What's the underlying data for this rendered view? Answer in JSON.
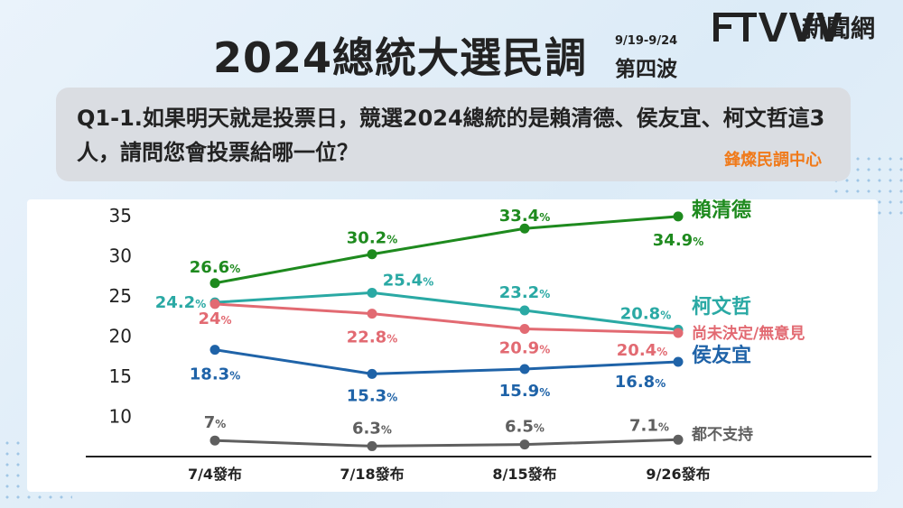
{
  "header": {
    "title": "2024總統大選民調",
    "date_range": "9/19-9/24",
    "wave": "第四波",
    "logo_text": "新聞網"
  },
  "question": {
    "text": "Q1-1.如果明天就是投票日，競選2024總統的是賴清德、侯友宜、柯文哲這3人，請問您會投票給哪一位？",
    "source": "鋒燦民調中心"
  },
  "colors": {
    "lai": "#1e8a1e",
    "ko": "#2aa9a4",
    "undecided": "#e26a72",
    "hou": "#1f63a8",
    "none": "#5f5f5f"
  },
  "chart_data": {
    "type": "line",
    "categories": [
      "7/4發布",
      "7/18發布",
      "8/15發布",
      "9/26發布"
    ],
    "ylim": [
      5,
      35
    ],
    "yticks": [
      10,
      15,
      20,
      25,
      30,
      35
    ],
    "grid": false,
    "series": [
      {
        "name": "賴清德",
        "key": "lai",
        "values": [
          26.6,
          30.2,
          33.4,
          34.9
        ],
        "labels": [
          "26.6",
          "30.2",
          "33.4",
          "34.9"
        ]
      },
      {
        "name": "柯文哲",
        "key": "ko",
        "values": [
          24.2,
          25.4,
          23.2,
          20.8
        ],
        "labels": [
          "24.2",
          "25.4",
          "23.2",
          "20.8"
        ]
      },
      {
        "name": "尚未決定/無意見",
        "key": "undecided",
        "values": [
          24.0,
          22.8,
          20.9,
          20.4
        ],
        "labels": [
          "24",
          "22.8",
          "20.9",
          "20.4"
        ]
      },
      {
        "name": "侯友宜",
        "key": "hou",
        "values": [
          18.3,
          15.3,
          15.9,
          16.8
        ],
        "labels": [
          "18.3",
          "15.3",
          "15.9",
          "16.8"
        ]
      },
      {
        "name": "都不支持",
        "key": "none",
        "values": [
          7.0,
          6.3,
          6.5,
          7.1
        ],
        "labels": [
          "7",
          "6.3",
          "6.5",
          "7.1"
        ]
      }
    ],
    "unit": "%"
  }
}
